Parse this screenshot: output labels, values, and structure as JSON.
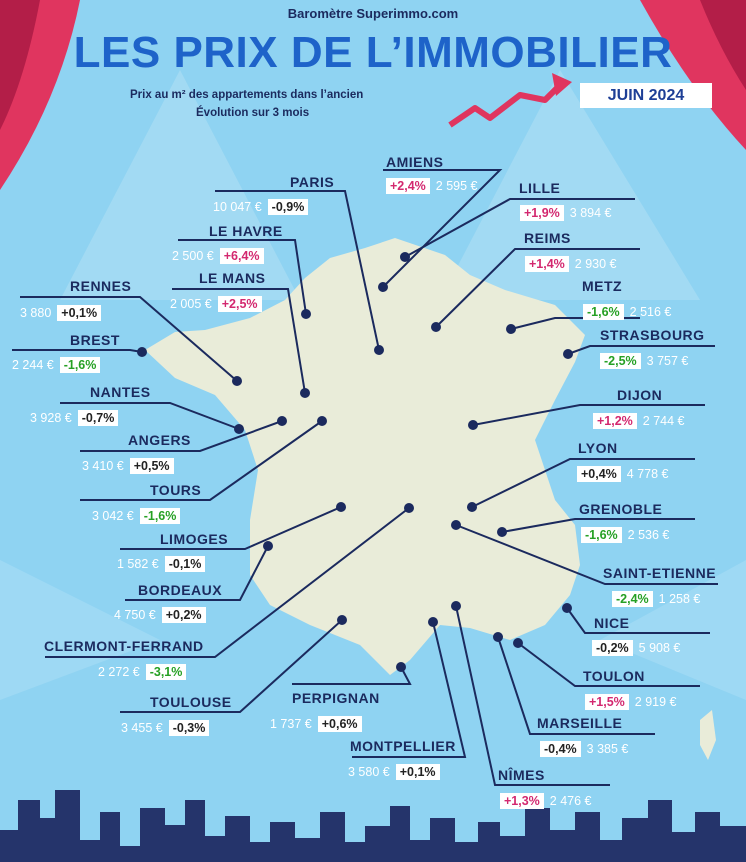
{
  "header": {
    "source": "Baromètre Superimmo.com",
    "title": "LES PRIX DE L’IMMOBILIER",
    "subtitle_line1": "Prix au m² des appartements dans l’ancien",
    "subtitle_line2": "Évolution sur 3 mois",
    "date": "JUIN 2024"
  },
  "colors": {
    "background": "#8fd3f2",
    "curtain": "#e0355f",
    "map_fill": "#e9ecd9",
    "city_label": "#1b2a5e",
    "positive": "#d3286f",
    "strong_negative": "#26a024",
    "title": "#1e63c9"
  },
  "cities": [
    {
      "name": "PARIS",
      "price": "10 047 €",
      "change": "-0,9%",
      "tone": "neutral"
    },
    {
      "name": "AMIENS",
      "price": "2 595 €",
      "change": "+2,4%",
      "tone": "pos"
    },
    {
      "name": "LILLE",
      "price": "3 894 €",
      "change": "+1,9%",
      "tone": "pos"
    },
    {
      "name": "LE HAVRE",
      "price": "2 500 €",
      "change": "+6,4%",
      "tone": "pos"
    },
    {
      "name": "REIMS",
      "price": "2 930 €",
      "change": "+1,4%",
      "tone": "pos"
    },
    {
      "name": "LE MANS",
      "price": "2 005 €",
      "change": "+2,5%",
      "tone": "pos"
    },
    {
      "name": "RENNES",
      "price": "3 880",
      "change": "+0,1%",
      "tone": "neutral"
    },
    {
      "name": "METZ",
      "price": "2 516 €",
      "change": "-1,6%",
      "tone": "neg"
    },
    {
      "name": "BREST",
      "price": "2 244 €",
      "change": "-1,6%",
      "tone": "neg"
    },
    {
      "name": "STRASBOURG",
      "price": "3 757 €",
      "change": "-2,5%",
      "tone": "neg"
    },
    {
      "name": "NANTES",
      "price": "3 928 €",
      "change": "-0,7%",
      "tone": "neutral"
    },
    {
      "name": "DIJON",
      "price": "2 744 €",
      "change": "+1,2%",
      "tone": "pos"
    },
    {
      "name": "ANGERS",
      "price": "3 410 €",
      "change": "+0,5%",
      "tone": "neutral"
    },
    {
      "name": "LYON",
      "price": "4 778 €",
      "change": "+0,4%",
      "tone": "neutral"
    },
    {
      "name": "TOURS",
      "price": "3 042 €",
      "change": "-1,6%",
      "tone": "neg"
    },
    {
      "name": "GRENOBLE",
      "price": "2 536 €",
      "change": "-1,6%",
      "tone": "neg"
    },
    {
      "name": "LIMOGES",
      "price": "1 582 €",
      "change": "-0,1%",
      "tone": "neutral"
    },
    {
      "name": "SAINT-ETIENNE",
      "price": "1 258 €",
      "change": "-2,4%",
      "tone": "neg"
    },
    {
      "name": "BORDEAUX",
      "price": "4 750 €",
      "change": "+0,2%",
      "tone": "neutral"
    },
    {
      "name": "NICE",
      "price": "5 908 €",
      "change": "-0,2%",
      "tone": "neutral"
    },
    {
      "name": "CLERMONT-FERRAND",
      "price": "2 272 €",
      "change": "-3,1%",
      "tone": "neg"
    },
    {
      "name": "TOULON",
      "price": "2 919 €",
      "change": "+1,5%",
      "tone": "pos"
    },
    {
      "name": "TOULOUSE",
      "price": "3 455 €",
      "change": "-0,3%",
      "tone": "neutral"
    },
    {
      "name": "PERPIGNAN",
      "price": "1 737 €",
      "change": "+0,6%",
      "tone": "neutral"
    },
    {
      "name": "MARSEILLE",
      "price": "3 385 €",
      "change": "-0,4%",
      "tone": "neutral"
    },
    {
      "name": "MONTPELLIER",
      "price": "3 580 €",
      "change": "+0,1%",
      "tone": "neutral"
    },
    {
      "name": "NÎMES",
      "price": "2 476 €",
      "change": "+1,3%",
      "tone": "pos"
    }
  ]
}
